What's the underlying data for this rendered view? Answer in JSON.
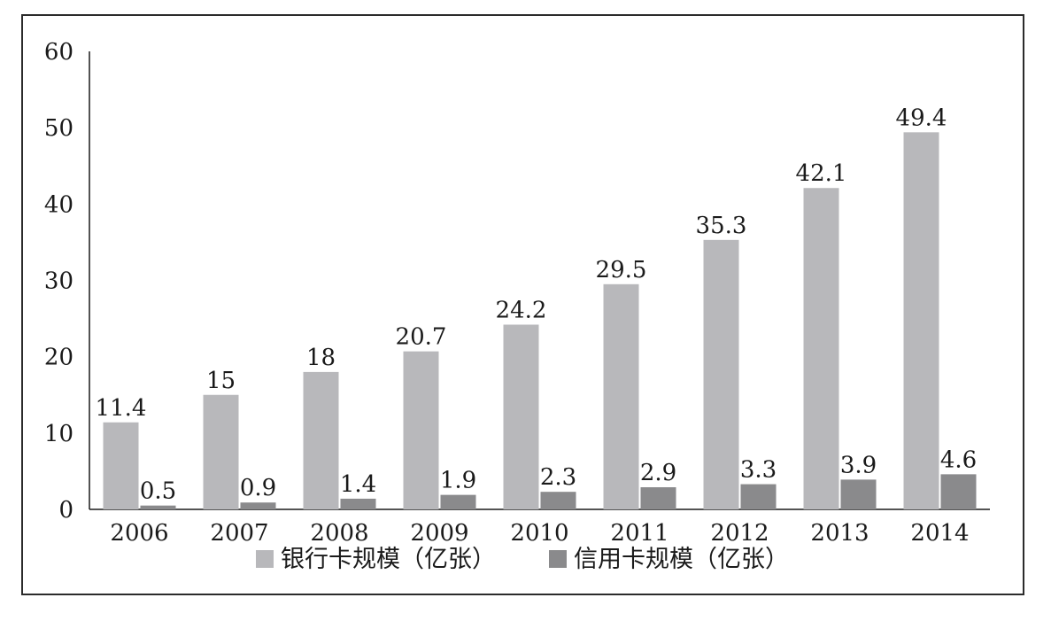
{
  "chart_data": {
    "type": "bar",
    "categories": [
      "2006",
      "2007",
      "2008",
      "2009",
      "2010",
      "2011",
      "2012",
      "2013",
      "2014"
    ],
    "series": [
      {
        "name": "银行卡规模（亿张）",
        "color": "#b8b8bb",
        "values": [
          11.4,
          15,
          18,
          20.7,
          24.2,
          29.5,
          35.3,
          42.1,
          49.4
        ],
        "labels": [
          "11.4",
          "15",
          "18",
          "20.7",
          "24.2",
          "29.5",
          "35.3",
          "42.1",
          "49.4"
        ]
      },
      {
        "name": "信用卡规模（亿张）",
        "color": "#8a8a8c",
        "values": [
          0.5,
          0.9,
          1.4,
          1.9,
          2.3,
          2.9,
          3.3,
          3.9,
          4.6
        ],
        "labels": [
          "0.5",
          "0.9",
          "1.4",
          "1.9",
          "2.3",
          "2.9",
          "3.3",
          "3.9",
          "4.6"
        ]
      }
    ],
    "yticks": [
      "0",
      "10",
      "20",
      "30",
      "40",
      "50",
      "60"
    ],
    "ylim": [
      0,
      60
    ],
    "title": "",
    "xlabel": "",
    "ylabel": "",
    "legend": "bottom",
    "grid": false
  }
}
